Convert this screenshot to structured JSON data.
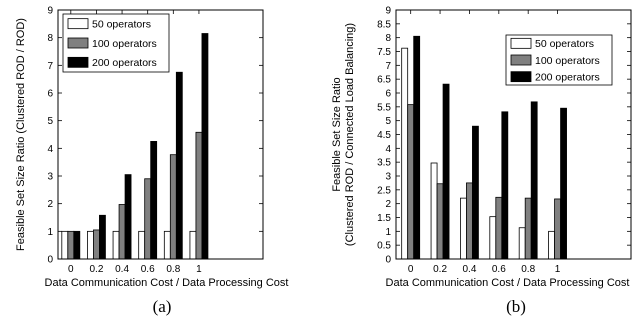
{
  "chart_data": [
    {
      "type": "bar",
      "caption": "(a)",
      "categories": [
        "0",
        "0.2",
        "0.4",
        "0.6",
        "0.8",
        "1"
      ],
      "xlabel": "Data Communication Cost / Data Processing Cost",
      "ylabel": "Feasible Set Size Ratio (Clustered ROD / ROD)",
      "ylim": [
        0,
        9
      ],
      "yticks": [
        "0",
        "1",
        "2",
        "3",
        "4",
        "5",
        "6",
        "7",
        "8",
        "9"
      ],
      "legend_position": "top-left",
      "series": [
        {
          "name": "50 operators",
          "color": "#ffffff",
          "values": [
            1.0,
            1.0,
            1.0,
            1.0,
            1.0,
            1.0
          ]
        },
        {
          "name": "100 operators",
          "color": "#808080",
          "values": [
            1.0,
            1.05,
            1.97,
            2.9,
            3.77,
            4.58
          ]
        },
        {
          "name": "200 operators",
          "color": "#000000",
          "values": [
            1.0,
            1.58,
            3.05,
            4.25,
            6.75,
            8.15
          ]
        }
      ]
    },
    {
      "type": "bar",
      "caption": "(b)",
      "categories": [
        "0",
        "0.2",
        "0.4",
        "0.6",
        "0.8",
        "1"
      ],
      "xlabel": "Data Communication Cost / Data Processing Cost",
      "ylabel_lines": [
        "Feasible Set Size Ratio",
        "(Clustered ROD / Connected Load Balancing)"
      ],
      "ylim": [
        0,
        9
      ],
      "yticks": [
        "0",
        "0.5",
        "1",
        "1.5",
        "2",
        "2.5",
        "3",
        "3.5",
        "4",
        "4.5",
        "5",
        "5.5",
        "6",
        "6.5",
        "7",
        "7.5",
        "8",
        "8.5",
        "9"
      ],
      "legend_position": "top-right",
      "series": [
        {
          "name": "50 operators",
          "color": "#ffffff",
          "values": [
            7.62,
            3.47,
            2.2,
            1.53,
            1.13,
            1.0
          ]
        },
        {
          "name": "100 operators",
          "color": "#808080",
          "values": [
            5.58,
            2.72,
            2.75,
            2.23,
            2.2,
            2.17
          ]
        },
        {
          "name": "200 operators",
          "color": "#000000",
          "values": [
            8.05,
            6.32,
            4.8,
            5.32,
            5.68,
            5.45
          ]
        }
      ]
    }
  ]
}
